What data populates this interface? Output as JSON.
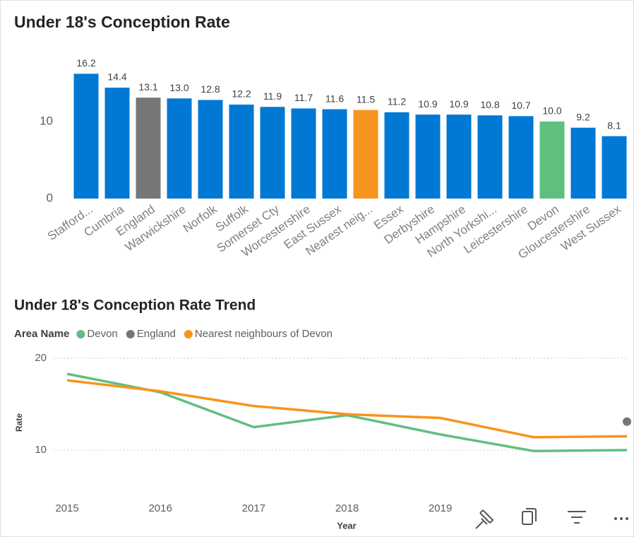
{
  "chart_data": [
    {
      "type": "bar",
      "title": "Under 18's Conception Rate",
      "categories": [
        "Stafford...",
        "Cumbria",
        "England",
        "Warwickshire",
        "Norfolk",
        "Suffolk",
        "Somerset Cty",
        "Worcestershire",
        "East Sussex",
        "Nearest neig...",
        "Essex",
        "Derbyshire",
        "Hampshire",
        "North Yorkshi...",
        "Leicestershire",
        "Devon",
        "Gloucestershire",
        "West Sussex"
      ],
      "values": [
        16.2,
        14.4,
        13.1,
        13.0,
        12.8,
        12.2,
        11.9,
        11.7,
        11.6,
        11.5,
        11.2,
        10.9,
        10.9,
        10.8,
        10.7,
        10.0,
        9.2,
        8.1
      ],
      "value_labels": [
        "16.2",
        "14.4",
        "13.1",
        "13.0",
        "12.8",
        "12.2",
        "11.9",
        "11.7",
        "11.6",
        "11.5",
        "11.2",
        "10.9",
        "10.9",
        "10.8",
        "10.7",
        "10.0",
        "9.2",
        "8.1"
      ],
      "colors": [
        "#0078d4",
        "#0078d4",
        "#767676",
        "#0078d4",
        "#0078d4",
        "#0078d4",
        "#0078d4",
        "#0078d4",
        "#0078d4",
        "#f7941d",
        "#0078d4",
        "#0078d4",
        "#0078d4",
        "#0078d4",
        "#0078d4",
        "#5fbf7f",
        "#0078d4",
        "#0078d4"
      ],
      "ylim": [
        0,
        18
      ],
      "yticks": [
        0,
        10
      ],
      "grid": false
    },
    {
      "type": "line",
      "title": "Under 18's Conception Rate Trend",
      "legend_title": "Area Name",
      "xlabel": "Year",
      "ylabel": "Rate",
      "x": [
        2015,
        2016,
        2017,
        2018,
        2019,
        2020,
        2021
      ],
      "series": [
        {
          "name": "Devon",
          "color": "#5fbf7f",
          "values": [
            18.3,
            16.3,
            12.5,
            13.8,
            11.7,
            9.9,
            10.0
          ]
        },
        {
          "name": "England",
          "color": "#767676",
          "values": [
            null,
            null,
            null,
            null,
            null,
            null,
            13.1
          ]
        },
        {
          "name": "Nearest neighbours of Devon",
          "color": "#f7941d",
          "values": [
            17.6,
            16.4,
            14.8,
            13.9,
            13.5,
            11.4,
            11.5
          ]
        }
      ],
      "xlim": [
        2015,
        2021
      ],
      "xticks": [
        2015,
        2016,
        2017,
        2018,
        2019
      ],
      "ylim": [
        5,
        21
      ],
      "yticks": [
        10,
        20
      ],
      "grid": true
    }
  ]
}
